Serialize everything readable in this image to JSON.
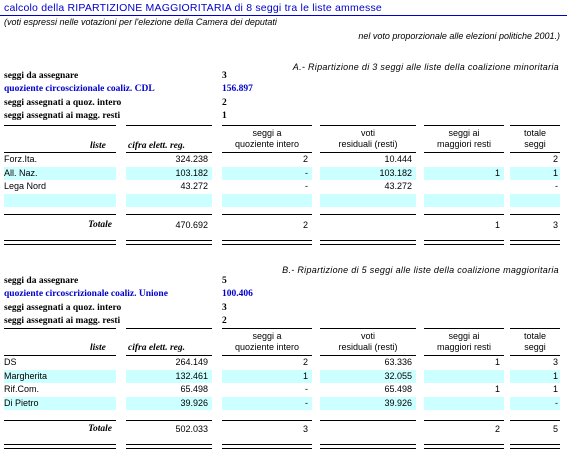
{
  "title": "calcolo della RIPARTIZIONE MAGGIORITARIA di 8 seggi tra le liste ammesse",
  "note_line1": "(voti espressi nelle votazioni per l'elezione della Camera dei deputati",
  "note_line2": "nel voto proporzionale alle elezioni politiche 2001.)",
  "headers": {
    "liste": "liste",
    "cifra": "cifra elett. reg.",
    "quoz_1": "seggi a",
    "quoz_2": "quoziente intero",
    "voti_1": "voti",
    "voti_2": "residuali (resti)",
    "magg_1": "seggi ai",
    "magg_2": "maggiori resti",
    "tot_1": "totale",
    "tot_2": "seggi"
  },
  "sections": [
    {
      "heading": "A.- Ripartizione di 3 seggi alle liste della coalizione minoritaria",
      "seggi_label": "seggi da assegnare",
      "seggi_value": "3",
      "quoziente_label": "quoziente circoscizionale coaliz. CDL",
      "quoziente_value": "156.897",
      "quoz_intero_label": "seggi assegnati a quoz. intero",
      "quoz_intero_value": "2",
      "magg_resti_label": "seggi assegnati ai magg. resti",
      "magg_resti_value": "1",
      "rows": [
        {
          "lista": "Forz.Ita.",
          "cifra": "324.238",
          "quoz": "2",
          "voti": "10.444",
          "magg": "",
          "tot": "2"
        },
        {
          "lista": "All. Naz.",
          "cifra": "103.182",
          "quoz": "-",
          "voti": "103.182",
          "magg": "1",
          "tot": "1"
        },
        {
          "lista": "Lega Nord",
          "cifra": "43.272",
          "quoz": "-",
          "voti": "43.272",
          "magg": "",
          "tot": "-"
        },
        {
          "lista": "",
          "cifra": "",
          "quoz": "",
          "voti": "",
          "magg": "",
          "tot": ""
        }
      ],
      "totale_label": "Totale",
      "totale": {
        "cifra": "470.692",
        "quoz": "2",
        "magg": "1",
        "tot": "3"
      }
    },
    {
      "heading": "B.- Ripartizione di 5 seggi alle liste della coalizione maggioritaria",
      "seggi_label": "seggi da assegnare",
      "seggi_value": "5",
      "quoziente_label": "quoziente circoscrizionale coaliz. Unione",
      "quoziente_value": "100.406",
      "quoz_intero_label": "seggi assegnati a quoz. intero",
      "quoz_intero_value": "3",
      "magg_resti_label": "seggi assegnati ai magg. resti",
      "magg_resti_value": "2",
      "rows": [
        {
          "lista": "DS",
          "cifra": "264.149",
          "quoz": "2",
          "voti": "63.336",
          "magg": "1",
          "tot": "3"
        },
        {
          "lista": "Margherita",
          "cifra": "132.461",
          "quoz": "1",
          "voti": "32.055",
          "magg": "",
          "tot": "1"
        },
        {
          "lista": "Rif.Com.",
          "cifra": "65.498",
          "quoz": "-",
          "voti": "65.498",
          "magg": "1",
          "tot": "1"
        },
        {
          "lista": "Di Pietro",
          "cifra": "39.926",
          "quoz": "-",
          "voti": "39.926",
          "magg": "",
          "tot": "-"
        }
      ],
      "totale_label": "Totale",
      "totale": {
        "cifra": "502.033",
        "quoz": "3",
        "magg": "2",
        "tot": "5"
      }
    }
  ]
}
